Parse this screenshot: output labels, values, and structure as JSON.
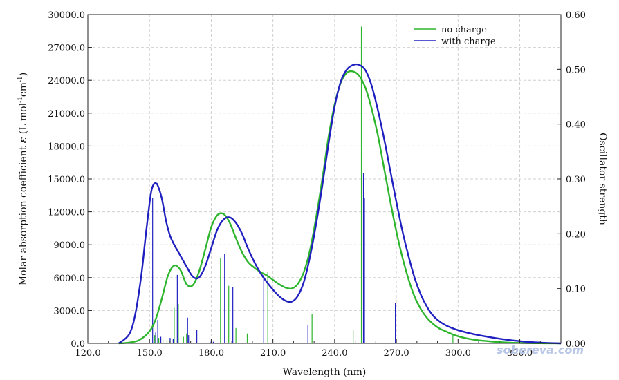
{
  "chart_data": {
    "type": "line",
    "title": "",
    "xlabel": "Wavelength (nm)",
    "ylabel_left": "Molar absorption coefficient ε (L mol⁻¹cm⁻¹)",
    "ylabel_left_parts": {
      "pre": "Molar absorption coefficient ",
      "eps": "ε",
      "mid1": " (L mol",
      "sup1": "-1",
      "mid2": "cm",
      "sup2": "-1",
      "post": ")"
    },
    "ylabel_right": "Oscillator strength",
    "xlim": [
      120,
      350
    ],
    "ylim_left": [
      0,
      30000
    ],
    "ylim_right": [
      0,
      0.6
    ],
    "x_ticks": [
      "120.0",
      "150.0",
      "180.0",
      "210.0",
      "240.0",
      "270.0",
      "300.0",
      "330.0"
    ],
    "y_left_ticks": [
      "0.0",
      "3000.0",
      "6000.0",
      "9000.0",
      "12000.0",
      "15000.0",
      "18000.0",
      "21000.0",
      "24000.0",
      "27000.0",
      "30000.0"
    ],
    "y_right_ticks": [
      "0.00",
      "0.10",
      "0.20",
      "0.30",
      "0.40",
      "0.50",
      "0.60"
    ],
    "grid": true,
    "legend_position": "top-right",
    "series": [
      {
        "name": "no charge",
        "color": "#2db52d",
        "x": [
          135,
          140,
          145,
          150,
          153,
          156,
          159,
          162,
          165,
          168,
          171,
          174,
          177,
          180,
          183,
          186,
          189,
          192,
          195,
          198,
          201,
          204,
          207,
          210,
          213,
          216,
          219,
          222,
          225,
          228,
          231,
          234,
          237,
          240,
          243,
          246,
          249,
          252,
          255,
          258,
          261,
          264,
          267,
          270,
          273,
          276,
          279,
          282,
          285,
          288,
          291,
          294,
          297,
          300,
          303,
          306,
          309,
          312,
          315,
          320,
          325,
          330,
          335,
          340,
          345,
          350
        ],
        "y": [
          0,
          70,
          300,
          1100,
          2200,
          4100,
          6200,
          7100,
          6700,
          5400,
          5300,
          6500,
          8500,
          10600,
          11700,
          11800,
          11000,
          9600,
          8300,
          7400,
          6900,
          6500,
          6200,
          5800,
          5400,
          5100,
          5000,
          5400,
          6500,
          8500,
          11500,
          15000,
          18800,
          21800,
          23800,
          24700,
          24800,
          24400,
          23300,
          21400,
          19000,
          16000,
          13000,
          10200,
          7800,
          5800,
          4200,
          3100,
          2300,
          1750,
          1350,
          1100,
          850,
          650,
          500,
          390,
          300,
          240,
          190,
          120,
          70,
          40,
          20,
          10,
          5,
          0
        ]
      },
      {
        "name": "with charge",
        "color": "#2020c0",
        "x": [
          135,
          140,
          143,
          146,
          148,
          150,
          151,
          152,
          153,
          154,
          156,
          158,
          160,
          162,
          165,
          168,
          171,
          174,
          177,
          180,
          183,
          186,
          189,
          192,
          195,
          198,
          201,
          204,
          207,
          210,
          213,
          216,
          219,
          222,
          225,
          228,
          231,
          234,
          237,
          240,
          243,
          246,
          249,
          252,
          255,
          258,
          261,
          264,
          267,
          270,
          273,
          276,
          279,
          282,
          285,
          288,
          291,
          294,
          297,
          300,
          305,
          310,
          315,
          320,
          325,
          330,
          335,
          340,
          345,
          350
        ],
        "y": [
          0,
          800,
          2600,
          6200,
          9600,
          12800,
          14000,
          14500,
          14600,
          14400,
          13200,
          11200,
          9800,
          9000,
          8000,
          7000,
          6100,
          6000,
          7000,
          8700,
          10400,
          11300,
          11500,
          11000,
          10000,
          8600,
          7400,
          6400,
          5600,
          4900,
          4300,
          3900,
          3800,
          4300,
          5600,
          7900,
          10900,
          14400,
          18200,
          21600,
          23900,
          25000,
          25400,
          25400,
          24900,
          23500,
          21300,
          18700,
          15800,
          12900,
          10200,
          7900,
          5900,
          4400,
          3300,
          2500,
          2000,
          1650,
          1400,
          1200,
          950,
          750,
          580,
          430,
          300,
          200,
          120,
          70,
          30,
          0
        ]
      }
    ],
    "sticks": [
      {
        "name": "no charge",
        "color": "#2db52d",
        "x": [
          152.5,
          154.5,
          156.5,
          158.5,
          160.0,
          162.0,
          164.0,
          166.5,
          168.0,
          184.5,
          188.5,
          192.0,
          197.5,
          207.5,
          229.0,
          249.0,
          253.0,
          297.5
        ],
        "f": [
          0.015,
          0.01,
          0.008,
          0.006,
          0.008,
          0.065,
          0.072,
          0.012,
          0.018,
          0.155,
          0.105,
          0.028,
          0.018,
          0.13,
          0.053,
          0.025,
          0.578,
          0.015
        ]
      },
      {
        "name": "with charge",
        "color": "#2020c0",
        "x": [
          151.5,
          153.0,
          154.0,
          155.5,
          160.0,
          161.5,
          163.5,
          168.5,
          169.0,
          173.0,
          179.5,
          181.0,
          186.5,
          190.5,
          205.5,
          227.0,
          254.0,
          254.5,
          269.5
        ],
        "f": [
          0.265,
          0.02,
          0.043,
          0.012,
          0.01,
          0.008,
          0.125,
          0.047,
          0.015,
          0.025,
          0.003,
          0.003,
          0.163,
          0.103,
          0.125,
          0.034,
          0.311,
          0.265,
          0.074
        ]
      }
    ]
  },
  "watermark": "sobereva.com"
}
